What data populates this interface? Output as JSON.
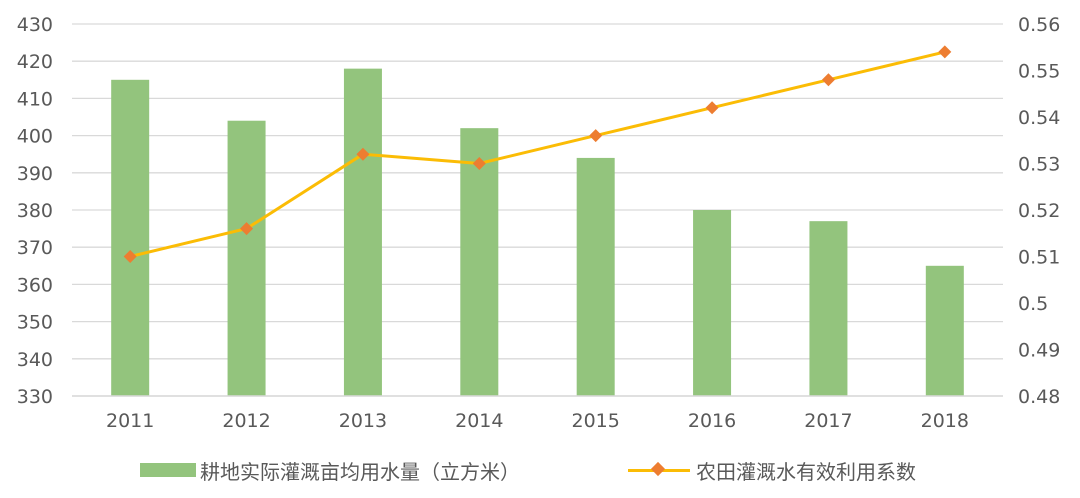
{
  "chart_data": {
    "type": "bar",
    "categories": [
      "2011",
      "2012",
      "2013",
      "2014",
      "2015",
      "2016",
      "2017",
      "2018"
    ],
    "series": [
      {
        "name": "耕地实际灌溉亩均用水量（立方米）",
        "type": "bar",
        "axis": "left",
        "values": [
          415,
          404,
          418,
          402,
          394,
          380,
          377,
          365
        ],
        "color": "#93c47d"
      },
      {
        "name": "农田灌溉水有效利用系数",
        "type": "line",
        "axis": "right",
        "values": [
          0.51,
          0.516,
          0.532,
          0.53,
          0.536,
          0.542,
          0.548,
          0.554
        ],
        "color": "#fbbc05",
        "marker_color": "#ed7d31"
      }
    ],
    "y_left": {
      "ylim": [
        330,
        430
      ],
      "ticks": [
        "330",
        "340",
        "350",
        "360",
        "370",
        "380",
        "390",
        "400",
        "410",
        "420",
        "430"
      ]
    },
    "y_right": {
      "ylim": [
        0.48,
        0.56
      ],
      "ticks": [
        "0.48",
        "0.49",
        "0.5",
        "0.51",
        "0.52",
        "0.53",
        "0.54",
        "0.55",
        "0.56"
      ]
    },
    "grid": true,
    "legend": "bottom",
    "gridline_color": "#d9d9d9",
    "title": "",
    "xlabel": "",
    "ylabel": ""
  }
}
